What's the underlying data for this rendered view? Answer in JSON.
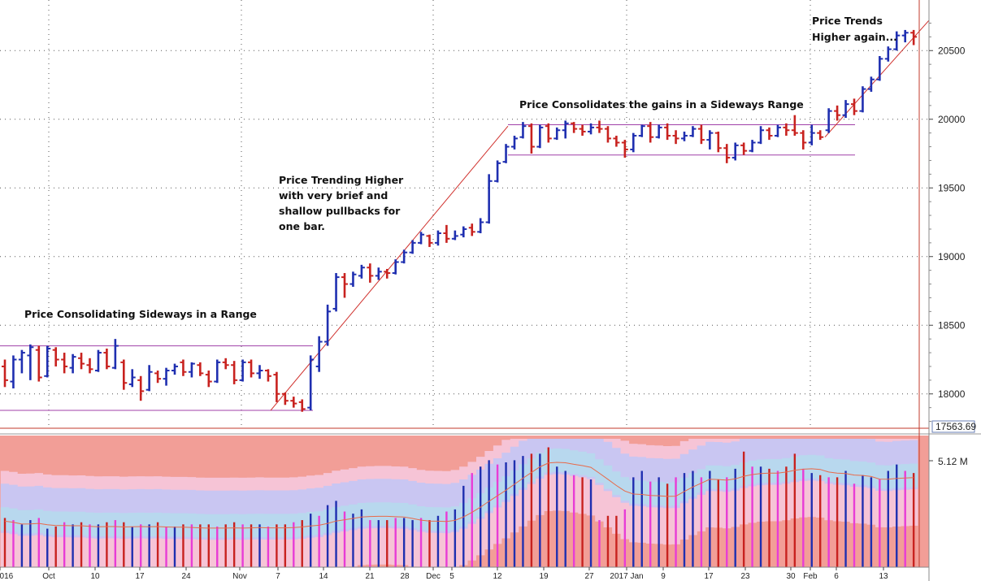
{
  "chart_data": {
    "type": "bar",
    "subtype": "ohlc-price-bars-with-volume",
    "price_axis": {
      "ticks": [
        18000,
        18500,
        19000,
        19500,
        20000,
        20500
      ],
      "range": [
        17750,
        20750
      ],
      "current_label": "17563.69"
    },
    "volume_axis": {
      "tick_label": "5.12 M"
    },
    "x_tick_labels": [
      "2016",
      "Oct",
      "10",
      "17",
      "24",
      "Nov",
      "7",
      "14",
      "21",
      "28",
      "Dec",
      "5",
      "12",
      "19",
      "27",
      "2017 Jan",
      "9",
      "17",
      "23",
      "30",
      "Feb",
      "6",
      "13"
    ],
    "grid": true,
    "annotations": [
      {
        "id": "range1",
        "lines": [
          "Price Consolidating Sideways in a Range"
        ]
      },
      {
        "id": "trend1",
        "lines": [
          "Price Trending Higher",
          "with very brief and",
          "shallow pullbacks for",
          "one bar."
        ]
      },
      {
        "id": "range2",
        "lines": [
          "Price Consolidates the gains in a Sideways Range"
        ]
      },
      {
        "id": "trend2",
        "lines": [
          "Price Trends",
          "Higher again..."
        ]
      }
    ],
    "range_lines": [
      {
        "name": "range1-resistance",
        "value": 18350
      },
      {
        "name": "range1-support",
        "value": 17880
      },
      {
        "name": "range2-resistance",
        "value": 19960
      },
      {
        "name": "range2-support",
        "value": 19740
      }
    ],
    "trend_lines": [
      {
        "name": "trendline-1",
        "from": {
          "bar": 0,
          "value": 17880
        },
        "to": {
          "bar": 1,
          "value": 19950
        }
      },
      {
        "name": "trendline-2",
        "from": {
          "bar": 0,
          "value": 19870
        },
        "to": {
          "bar": 1,
          "value": 20720
        }
      }
    ],
    "bars": [
      {
        "o": 18200,
        "h": 18250,
        "l": 18050,
        "c": 18100,
        "v": 2.3
      },
      {
        "o": 18090,
        "h": 18280,
        "l": 18040,
        "c": 18250,
        "v": 2.2
      },
      {
        "o": 18250,
        "h": 18320,
        "l": 18150,
        "c": 18300,
        "v": 2.0
      },
      {
        "o": 18280,
        "h": 18360,
        "l": 18100,
        "c": 18340,
        "v": 2.2
      },
      {
        "o": 18320,
        "h": 18350,
        "l": 18090,
        "c": 18120,
        "v": 2.3
      },
      {
        "o": 18130,
        "h": 18350,
        "l": 18120,
        "c": 18330,
        "v": 1.8
      },
      {
        "o": 18320,
        "h": 18340,
        "l": 18200,
        "c": 18250,
        "v": 1.9
      },
      {
        "o": 18250,
        "h": 18300,
        "l": 18150,
        "c": 18200,
        "v": 2.1
      },
      {
        "o": 18190,
        "h": 18290,
        "l": 18150,
        "c": 18270,
        "v": 2.0
      },
      {
        "o": 18260,
        "h": 18300,
        "l": 18180,
        "c": 18220,
        "v": 2.1
      },
      {
        "o": 18210,
        "h": 18260,
        "l": 18150,
        "c": 18180,
        "v": 2.0
      },
      {
        "o": 18170,
        "h": 18320,
        "l": 18160,
        "c": 18300,
        "v": 2.0
      },
      {
        "o": 18300,
        "h": 18330,
        "l": 18180,
        "c": 18200,
        "v": 2.1
      },
      {
        "o": 18190,
        "h": 18400,
        "l": 18180,
        "c": 18350,
        "v": 2.2
      },
      {
        "o": 18230,
        "h": 18250,
        "l": 18030,
        "c": 18080,
        "v": 2.1
      },
      {
        "o": 18070,
        "h": 18180,
        "l": 18050,
        "c": 18120,
        "v": 1.9
      },
      {
        "o": 18100,
        "h": 18130,
        "l": 17950,
        "c": 18020,
        "v": 2.0
      },
      {
        "o": 18030,
        "h": 18210,
        "l": 18020,
        "c": 18160,
        "v": 2.0
      },
      {
        "o": 18150,
        "h": 18170,
        "l": 18080,
        "c": 18110,
        "v": 2.1
      },
      {
        "o": 18110,
        "h": 18190,
        "l": 18060,
        "c": 18170,
        "v": 1.9
      },
      {
        "o": 18170,
        "h": 18220,
        "l": 18140,
        "c": 18200,
        "v": 1.9
      },
      {
        "o": 18230,
        "h": 18250,
        "l": 18130,
        "c": 18160,
        "v": 2.0
      },
      {
        "o": 18160,
        "h": 18230,
        "l": 18120,
        "c": 18220,
        "v": 2.0
      },
      {
        "o": 18210,
        "h": 18230,
        "l": 18130,
        "c": 18150,
        "v": 2.0
      },
      {
        "o": 18140,
        "h": 18170,
        "l": 18050,
        "c": 18090,
        "v": 2.0
      },
      {
        "o": 18090,
        "h": 18250,
        "l": 18080,
        "c": 18230,
        "v": 1.9
      },
      {
        "o": 18230,
        "h": 18260,
        "l": 18180,
        "c": 18210,
        "v": 2.0
      },
      {
        "o": 18210,
        "h": 18240,
        "l": 18070,
        "c": 18100,
        "v": 2.1
      },
      {
        "o": 18100,
        "h": 18250,
        "l": 18090,
        "c": 18230,
        "v": 2.0
      },
      {
        "o": 18230,
        "h": 18250,
        "l": 18120,
        "c": 18150,
        "v": 2.0
      },
      {
        "o": 18150,
        "h": 18210,
        "l": 18110,
        "c": 18170,
        "v": 2.0
      },
      {
        "o": 18170,
        "h": 18180,
        "l": 18090,
        "c": 18130,
        "v": 1.9
      },
      {
        "o": 18140,
        "h": 18160,
        "l": 17940,
        "c": 18000,
        "v": 2.0
      },
      {
        "o": 18000,
        "h": 18010,
        "l": 17920,
        "c": 17950,
        "v": 2.0
      },
      {
        "o": 17950,
        "h": 17980,
        "l": 17900,
        "c": 17930,
        "v": 2.1
      },
      {
        "o": 17940,
        "h": 17960,
        "l": 17870,
        "c": 17890,
        "v": 2.2
      },
      {
        "o": 17900,
        "h": 18280,
        "l": 17880,
        "c": 18250,
        "v": 2.5
      },
      {
        "o": 18200,
        "h": 18420,
        "l": 18160,
        "c": 18380,
        "v": 2.4
      },
      {
        "o": 18380,
        "h": 18650,
        "l": 18350,
        "c": 18600,
        "v": 2.9
      },
      {
        "o": 18620,
        "h": 18880,
        "l": 18600,
        "c": 18850,
        "v": 3.1
      },
      {
        "o": 18850,
        "h": 18880,
        "l": 18700,
        "c": 18800,
        "v": 2.6
      },
      {
        "o": 18800,
        "h": 18890,
        "l": 18780,
        "c": 18870,
        "v": 2.5
      },
      {
        "o": 18860,
        "h": 18940,
        "l": 18840,
        "c": 18920,
        "v": 2.7
      },
      {
        "o": 18920,
        "h": 18950,
        "l": 18810,
        "c": 18860,
        "v": 2.2
      },
      {
        "o": 18860,
        "h": 18920,
        "l": 18830,
        "c": 18890,
        "v": 2.2
      },
      {
        "o": 18890,
        "h": 18910,
        "l": 18840,
        "c": 18880,
        "v": 2.2
      },
      {
        "o": 18880,
        "h": 18980,
        "l": 18870,
        "c": 18960,
        "v": 2.3
      },
      {
        "o": 18960,
        "h": 19050,
        "l": 18950,
        "c": 19030,
        "v": 2.3
      },
      {
        "o": 19030,
        "h": 19120,
        "l": 19020,
        "c": 19100,
        "v": 2.2
      },
      {
        "o": 19100,
        "h": 19180,
        "l": 19090,
        "c": 19160,
        "v": 2.3
      },
      {
        "o": 19150,
        "h": 19160,
        "l": 19070,
        "c": 19100,
        "v": 2.2
      },
      {
        "o": 19100,
        "h": 19190,
        "l": 19080,
        "c": 19170,
        "v": 2.4
      },
      {
        "o": 19170,
        "h": 19230,
        "l": 19100,
        "c": 19130,
        "v": 2.6
      },
      {
        "o": 19130,
        "h": 19190,
        "l": 19120,
        "c": 19150,
        "v": 2.7
      },
      {
        "o": 19160,
        "h": 19220,
        "l": 19140,
        "c": 19200,
        "v": 3.8
      },
      {
        "o": 19210,
        "h": 19240,
        "l": 19150,
        "c": 19180,
        "v": 4.4
      },
      {
        "o": 19180,
        "h": 19280,
        "l": 19170,
        "c": 19250,
        "v": 4.7
      },
      {
        "o": 19250,
        "h": 19600,
        "l": 19240,
        "c": 19550,
        "v": 5.0
      },
      {
        "o": 19550,
        "h": 19700,
        "l": 19540,
        "c": 19680,
        "v": 4.8
      },
      {
        "o": 19690,
        "h": 19820,
        "l": 19680,
        "c": 19800,
        "v": 4.9
      },
      {
        "o": 19800,
        "h": 19880,
        "l": 19780,
        "c": 19860,
        "v": 5.0
      },
      {
        "o": 19870,
        "h": 19980,
        "l": 19860,
        "c": 19950,
        "v": 5.2
      },
      {
        "o": 19950,
        "h": 19970,
        "l": 19750,
        "c": 19800,
        "v": 5.3
      },
      {
        "o": 19800,
        "h": 19960,
        "l": 19790,
        "c": 19940,
        "v": 5.3
      },
      {
        "o": 19950,
        "h": 19970,
        "l": 19830,
        "c": 19860,
        "v": 5.6
      },
      {
        "o": 19860,
        "h": 19940,
        "l": 19850,
        "c": 19920,
        "v": 4.7
      },
      {
        "o": 19920,
        "h": 19990,
        "l": 19860,
        "c": 19970,
        "v": 4.5
      },
      {
        "o": 19970,
        "h": 19980,
        "l": 19900,
        "c": 19930,
        "v": 4.3
      },
      {
        "o": 19930,
        "h": 19960,
        "l": 19880,
        "c": 19910,
        "v": 4.2
      },
      {
        "o": 19910,
        "h": 19970,
        "l": 19890,
        "c": 19940,
        "v": 4.1
      },
      {
        "o": 19940,
        "h": 19990,
        "l": 19900,
        "c": 19930,
        "v": 2.2
      },
      {
        "o": 19930,
        "h": 19950,
        "l": 19830,
        "c": 19860,
        "v": 2.4
      },
      {
        "o": 19860,
        "h": 19880,
        "l": 19800,
        "c": 19830,
        "v": 2.4
      },
      {
        "o": 19830,
        "h": 19850,
        "l": 19720,
        "c": 19780,
        "v": 2.7
      },
      {
        "o": 19780,
        "h": 19900,
        "l": 19760,
        "c": 19880,
        "v": 4.2
      },
      {
        "o": 19880,
        "h": 19960,
        "l": 19870,
        "c": 19950,
        "v": 4.5
      },
      {
        "o": 19950,
        "h": 19980,
        "l": 19830,
        "c": 19870,
        "v": 4.0
      },
      {
        "o": 19870,
        "h": 19960,
        "l": 19860,
        "c": 19940,
        "v": 4.2
      },
      {
        "o": 19940,
        "h": 19970,
        "l": 19850,
        "c": 19880,
        "v": 3.9
      },
      {
        "o": 19880,
        "h": 19920,
        "l": 19820,
        "c": 19860,
        "v": 4.2
      },
      {
        "o": 19860,
        "h": 19910,
        "l": 19840,
        "c": 19880,
        "v": 4.4
      },
      {
        "o": 19880,
        "h": 19950,
        "l": 19870,
        "c": 19930,
        "v": 4.5
      },
      {
        "o": 19930,
        "h": 19960,
        "l": 19820,
        "c": 19850,
        "v": 4.2
      },
      {
        "o": 19850,
        "h": 19920,
        "l": 19780,
        "c": 19900,
        "v": 4.5
      },
      {
        "o": 19900,
        "h": 19910,
        "l": 19760,
        "c": 19790,
        "v": 4.1
      },
      {
        "o": 19790,
        "h": 19820,
        "l": 19680,
        "c": 19720,
        "v": 4.2
      },
      {
        "o": 19720,
        "h": 19830,
        "l": 19700,
        "c": 19810,
        "v": 4.6
      },
      {
        "o": 19810,
        "h": 19830,
        "l": 19740,
        "c": 19770,
        "v": 5.4
      },
      {
        "o": 19770,
        "h": 19850,
        "l": 19760,
        "c": 19830,
        "v": 4.7
      },
      {
        "o": 19830,
        "h": 19950,
        "l": 19820,
        "c": 19920,
        "v": 4.7
      },
      {
        "o": 19920,
        "h": 19940,
        "l": 19850,
        "c": 19880,
        "v": 4.6
      },
      {
        "o": 19880,
        "h": 19960,
        "l": 19870,
        "c": 19940,
        "v": 4.5
      },
      {
        "o": 19940,
        "h": 19970,
        "l": 19880,
        "c": 19920,
        "v": 4.7
      },
      {
        "o": 19920,
        "h": 20030,
        "l": 19880,
        "c": 19900,
        "v": 5.3
      },
      {
        "o": 19900,
        "h": 19920,
        "l": 19780,
        "c": 19830,
        "v": 4.6
      },
      {
        "o": 19830,
        "h": 19960,
        "l": 19810,
        "c": 19900,
        "v": 4.4
      },
      {
        "o": 19900,
        "h": 19920,
        "l": 19850,
        "c": 19870,
        "v": 4.3
      },
      {
        "o": 19920,
        "h": 20080,
        "l": 19900,
        "c": 20060,
        "v": 4.2
      },
      {
        "o": 20060,
        "h": 20100,
        "l": 19990,
        "c": 20030,
        "v": 4.2
      },
      {
        "o": 20030,
        "h": 20140,
        "l": 20010,
        "c": 20110,
        "v": 4.5
      },
      {
        "o": 20110,
        "h": 20150,
        "l": 20030,
        "c": 20060,
        "v": 3.9
      },
      {
        "o": 20060,
        "h": 20240,
        "l": 20050,
        "c": 20220,
        "v": 4.3
      },
      {
        "o": 20220,
        "h": 20310,
        "l": 20200,
        "c": 20290,
        "v": 4.2
      },
      {
        "o": 20290,
        "h": 20460,
        "l": 20280,
        "c": 20440,
        "v": 4.1
      },
      {
        "o": 20440,
        "h": 20530,
        "l": 20420,
        "c": 20510,
        "v": 4.5
      },
      {
        "o": 20510,
        "h": 20640,
        "l": 20500,
        "c": 20610,
        "v": 4.8
      },
      {
        "o": 20610,
        "h": 20650,
        "l": 20560,
        "c": 20630,
        "v": 4.5
      },
      {
        "o": 20630,
        "h": 20650,
        "l": 20540,
        "c": 20600,
        "v": 4.4
      }
    ]
  }
}
